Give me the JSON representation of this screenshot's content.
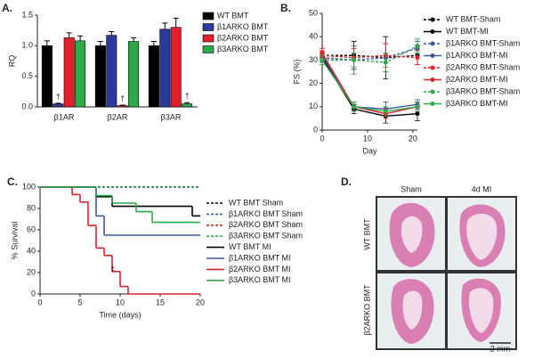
{
  "chart_data": [
    {
      "type": "bar",
      "label": "A.",
      "ylabel": "RQ",
      "categories": [
        "β1AR",
        "β2AR",
        "β3AR"
      ],
      "ylim": [
        0,
        1.5
      ],
      "yticks": [
        {
          "value": 0,
          "label": "0.0"
        },
        {
          "value": 0.5,
          "label": "0.5"
        },
        {
          "value": 1,
          "label": "1.0"
        },
        {
          "value": 1.5,
          "label": "1.5"
        }
      ],
      "series": [
        {
          "name": "WT BMT",
          "color": "#000000",
          "values": [
            1.0,
            1.0,
            1.0
          ],
          "errors": [
            0.08,
            0.07,
            0.07
          ]
        },
        {
          "name": "β1ARKO BMT",
          "color": "#2b3a9c",
          "values": [
            0.05,
            1.17,
            1.27
          ],
          "errors": [
            0.01,
            0.06,
            0.1
          ]
        },
        {
          "name": "β2ARKO BMT",
          "color": "#e3202a",
          "values": [
            1.13,
            0.02,
            1.3
          ],
          "errors": [
            0.08,
            0.01,
            0.15
          ]
        },
        {
          "name": "β3ARKO BMT",
          "color": "#2eaa4a",
          "values": [
            1.08,
            1.07,
            0.05
          ],
          "errors": [
            0.08,
            0.06,
            0.02
          ]
        }
      ],
      "annotations": [
        "†",
        "†",
        "†"
      ]
    },
    {
      "type": "line",
      "label": "B.",
      "ylabel": "FS (%)",
      "xlabel": "Day",
      "x": [
        0,
        7,
        14,
        21
      ],
      "xlim": [
        0,
        21
      ],
      "xticks": [
        0,
        10,
        20
      ],
      "ylim": [
        0,
        50
      ],
      "yticks": [
        0,
        10,
        20,
        30,
        40,
        50
      ],
      "series": [
        {
          "name": "WT BMT-Sham",
          "color": "#000000",
          "dash": true,
          "values": [
            32,
            32,
            31,
            32
          ],
          "errors": [
            2,
            6,
            9,
            4
          ]
        },
        {
          "name": "WT BMT-MI",
          "color": "#000000",
          "dash": false,
          "values": [
            31,
            9,
            6,
            7
          ],
          "errors": [
            2,
            2,
            3,
            3
          ]
        },
        {
          "name": "β1ARKO BMT-Sham",
          "color": "#3b56a8",
          "dash": true,
          "values": [
            31,
            30,
            31,
            35
          ],
          "errors": [
            2,
            6,
            6,
            3
          ]
        },
        {
          "name": "β1ARKO BMT-MI",
          "color": "#3b56a8",
          "dash": false,
          "values": [
            32,
            10,
            9,
            11
          ],
          "errors": [
            2,
            2,
            3,
            2
          ]
        },
        {
          "name": "β2ARKO BMT-Sham",
          "color": "#e3202a",
          "dash": true,
          "values": [
            32,
            31,
            32,
            31
          ],
          "errors": [
            2,
            4,
            5,
            3
          ]
        },
        {
          "name": "β2ARKO BMT-MI",
          "color": "#e3202a",
          "dash": false,
          "values": [
            33,
            10,
            7,
            10
          ],
          "errors": [
            2,
            2,
            2,
            2
          ]
        },
        {
          "name": "β3ARKO BMT-Sham",
          "color": "#2eaa4a",
          "dash": true,
          "values": [
            30,
            30,
            29,
            36
          ],
          "errors": [
            2,
            3,
            4,
            3
          ]
        },
        {
          "name": "β3ARKO BMT-MI",
          "color": "#2eaa4a",
          "dash": false,
          "values": [
            30,
            10,
            8,
            10
          ],
          "errors": [
            2,
            2,
            2,
            2
          ]
        }
      ]
    },
    {
      "type": "step",
      "label": "C.",
      "ylabel": "% Survival",
      "xlabel": "Time (days)",
      "xlim": [
        0,
        20
      ],
      "xticks": [
        0,
        5,
        10,
        15,
        20
      ],
      "ylim": [
        0,
        100
      ],
      "yticks": [
        0,
        20,
        40,
        60,
        80,
        100
      ],
      "series": [
        {
          "name": "WT BMT Sham",
          "color": "#000000",
          "dash": true,
          "x": [
            0,
            20
          ],
          "values": [
            100,
            100
          ]
        },
        {
          "name": "β1ARKO BMT Sham",
          "color": "#3b56a8",
          "dash": true,
          "x": [
            0,
            20
          ],
          "values": [
            100,
            100
          ]
        },
        {
          "name": "β2ARKO BMT Sham",
          "color": "#e3202a",
          "dash": true,
          "x": [
            0,
            20
          ],
          "values": [
            100,
            100
          ]
        },
        {
          "name": "β3ARKO BMT Sham",
          "color": "#2eaa4a",
          "dash": true,
          "x": [
            0,
            20
          ],
          "values": [
            100,
            100
          ]
        },
        {
          "name": "WT BMT MI",
          "color": "#000000",
          "dash": false,
          "x": [
            0,
            7,
            9,
            19,
            20
          ],
          "values": [
            100,
            91,
            82,
            73,
            73
          ]
        },
        {
          "name": "β1ARKO BMT MI",
          "color": "#3b56a8",
          "dash": false,
          "x": [
            0,
            7,
            8,
            20
          ],
          "values": [
            100,
            73,
            55,
            55
          ]
        },
        {
          "name": "β2ARKO BMT MI",
          "color": "#e3202a",
          "dash": false,
          "x": [
            0,
            4,
            5,
            6,
            7,
            8,
            9,
            10,
            11,
            20
          ],
          "values": [
            100,
            93,
            86,
            64,
            43,
            36,
            21,
            7,
            0,
            0
          ]
        },
        {
          "name": "β3ARKO BMT MI",
          "color": "#2eaa4a",
          "dash": false,
          "x": [
            0,
            7,
            9,
            12,
            14,
            20
          ],
          "values": [
            100,
            92,
            85,
            77,
            67,
            67
          ]
        }
      ],
      "annotations": [
        "‡"
      ]
    }
  ],
  "panel_d": {
    "label": "D.",
    "columns": [
      "Sham",
      "4d MI"
    ],
    "rows": [
      "WT BMT",
      "β2ARKO BMT"
    ],
    "scale_bar": "2 mm"
  }
}
